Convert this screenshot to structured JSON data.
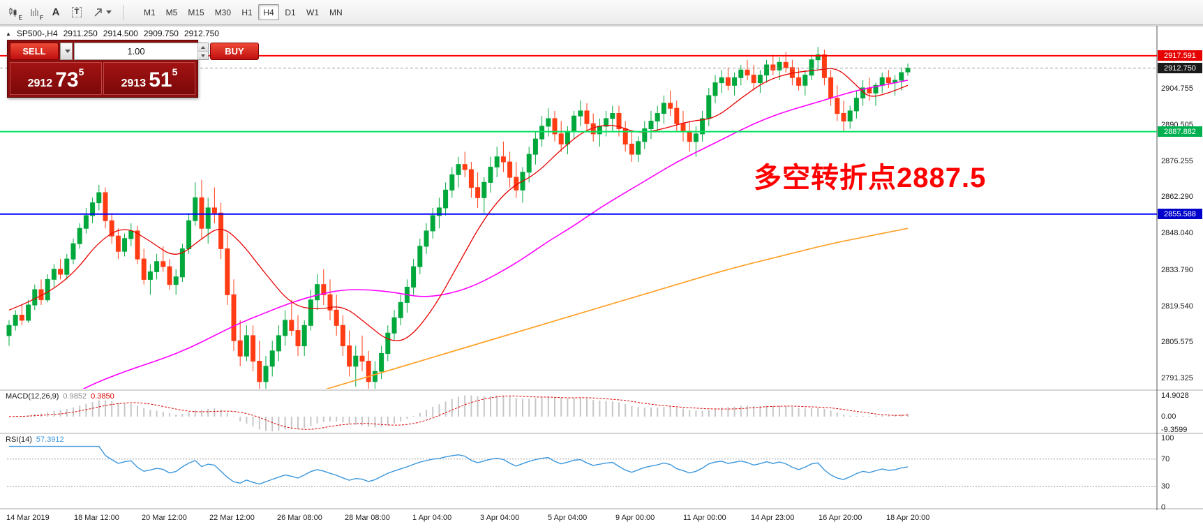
{
  "toolbar": {
    "icons": [
      {
        "name": "chart-expert-icon",
        "glyph": "E"
      },
      {
        "name": "indicator-list-icon",
        "glyph": "F"
      },
      {
        "name": "text-label-icon",
        "glyph": "A"
      },
      {
        "name": "text-box-icon",
        "glyph": "T"
      },
      {
        "name": "arrow-tools-icon",
        "glyph": ""
      }
    ],
    "timeframes": [
      "M1",
      "M5",
      "M15",
      "M30",
      "H1",
      "H4",
      "D1",
      "W1",
      "MN"
    ],
    "active_timeframe": "H4"
  },
  "chart": {
    "header": {
      "collapse_icon": "▲",
      "symbol_period": "SP500-,H4",
      "open": "2911.250",
      "high": "2914.500",
      "low": "2909.750",
      "close": "2912.750"
    },
    "trade_panel": {
      "sell_label": "SELL",
      "buy_label": "BUY",
      "volume": "1.00",
      "bid_base": "2912",
      "bid_big": "73",
      "bid_sup": "5",
      "ask_base": "2913",
      "ask_big": "51",
      "ask_sup": "5"
    },
    "annotation": {
      "text": "多空转折点2887.5",
      "color": "#ff0000"
    },
    "levels": [
      {
        "label": "2917.591",
        "price": 2917.591,
        "line_color": "#ff0000",
        "tag_color": "#e60000",
        "dashed": false
      },
      {
        "label": "2912.750",
        "price": 2912.75,
        "line_color": "#9a9a9a",
        "tag_color": "#1a1a1a",
        "dashed": true
      },
      {
        "label": "2887.882",
        "price": 2887.882,
        "line_color": "#00e25c",
        "tag_color": "#00b050",
        "dashed": false
      },
      {
        "label": "2855.588",
        "price": 2855.588,
        "line_color": "#0000ff",
        "tag_color": "#0000cc",
        "dashed": false
      }
    ],
    "colors": {
      "bull": "#00a83c",
      "bear": "#ff3c14",
      "ma_fast": "#e80000",
      "ma_mid": "#ff00ff",
      "ma_slow": "#ffa028",
      "rsi": "#3a96dd",
      "macd_hist": "#c6c6c6",
      "macd_signal": "#dd0000"
    }
  },
  "macd": {
    "name": "MACD(12,26,9)",
    "value_main": "0.9852",
    "value_signal": "0.3850",
    "scale": [
      {
        "label": "14.9028",
        "value": 14.9028
      },
      {
        "label": "0.00",
        "value": 0
      },
      {
        "label": "-9.3599",
        "value": -9.3599
      }
    ]
  },
  "rsi": {
    "name": "RSI(14)",
    "value": "57.3912",
    "scale": [
      {
        "label": "100",
        "value": 100
      },
      {
        "label": "70",
        "value": 70
      },
      {
        "label": "30",
        "value": 30
      },
      {
        "label": "0",
        "value": 0
      }
    ]
  },
  "chart_data": {
    "type": "candlestick",
    "symbol": "SP500-",
    "timeframe": "H4",
    "ohlc_current": {
      "open": 2911.25,
      "high": 2914.5,
      "low": 2909.75,
      "close": 2912.75
    },
    "price_range": [
      2787.2,
      2926.3
    ],
    "y_ticks": [
      "2904.755",
      "2890.505",
      "2876.255",
      "2862.290",
      "2848.040",
      "2833.790",
      "2819.540",
      "2805.575",
      "2791.325"
    ],
    "x_ticks": [
      "14 Mar 2019",
      "18 Mar 12:00",
      "20 Mar 12:00",
      "22 Mar 12:00",
      "26 Mar 08:00",
      "28 Mar 08:00",
      "1 Apr 04:00",
      "3 Apr 04:00",
      "5 Apr 04:00",
      "9 Apr 00:00",
      "11 Apr 00:00",
      "14 Apr 23:00",
      "16 Apr 20:00",
      "18 Apr 20:00"
    ],
    "candles": [
      [
        2808,
        2814,
        2804,
        2812
      ],
      [
        2812,
        2818,
        2810,
        2816
      ],
      [
        2816,
        2820,
        2812,
        2814
      ],
      [
        2814,
        2822,
        2813,
        2820
      ],
      [
        2820,
        2828,
        2818,
        2826
      ],
      [
        2826,
        2830,
        2820,
        2822
      ],
      [
        2822,
        2832,
        2821,
        2830
      ],
      [
        2830,
        2836,
        2827,
        2834
      ],
      [
        2834,
        2838,
        2830,
        2832
      ],
      [
        2832,
        2840,
        2830,
        2838
      ],
      [
        2838,
        2846,
        2836,
        2844
      ],
      [
        2844,
        2852,
        2842,
        2850
      ],
      [
        2850,
        2858,
        2848,
        2855
      ],
      [
        2855,
        2862,
        2852,
        2860
      ],
      [
        2860,
        2867,
        2857,
        2864
      ],
      [
        2864,
        2866,
        2850,
        2853
      ],
      [
        2853,
        2856,
        2844,
        2847
      ],
      [
        2847,
        2850,
        2838,
        2841
      ],
      [
        2841,
        2848,
        2839,
        2846
      ],
      [
        2846,
        2852,
        2843,
        2849
      ],
      [
        2849,
        2851,
        2836,
        2838
      ],
      [
        2838,
        2842,
        2828,
        2830
      ],
      [
        2830,
        2836,
        2824,
        2833
      ],
      [
        2833,
        2840,
        2830,
        2837
      ],
      [
        2837,
        2843,
        2833,
        2835
      ],
      [
        2835,
        2838,
        2826,
        2828
      ],
      [
        2828,
        2834,
        2824,
        2831
      ],
      [
        2831,
        2844,
        2829,
        2842
      ],
      [
        2842,
        2856,
        2840,
        2853
      ],
      [
        2853,
        2868,
        2851,
        2862
      ],
      [
        2862,
        2869,
        2846,
        2850
      ],
      [
        2850,
        2862,
        2844,
        2858
      ],
      [
        2858,
        2866,
        2852,
        2856
      ],
      [
        2856,
        2860,
        2838,
        2842
      ],
      [
        2842,
        2848,
        2820,
        2824
      ],
      [
        2824,
        2830,
        2802,
        2806
      ],
      [
        2806,
        2814,
        2796,
        2800
      ],
      [
        2800,
        2812,
        2798,
        2808
      ],
      [
        2808,
        2812,
        2794,
        2798
      ],
      [
        2798,
        2806,
        2786,
        2790
      ],
      [
        2790,
        2800,
        2784,
        2796
      ],
      [
        2796,
        2806,
        2792,
        2802
      ],
      [
        2802,
        2812,
        2798,
        2808
      ],
      [
        2808,
        2818,
        2804,
        2814
      ],
      [
        2814,
        2822,
        2808,
        2810
      ],
      [
        2810,
        2816,
        2800,
        2804
      ],
      [
        2804,
        2814,
        2800,
        2812
      ],
      [
        2812,
        2826,
        2810,
        2822
      ],
      [
        2822,
        2832,
        2818,
        2828
      ],
      [
        2828,
        2834,
        2820,
        2824
      ],
      [
        2824,
        2830,
        2814,
        2818
      ],
      [
        2818,
        2824,
        2808,
        2812
      ],
      [
        2812,
        2816,
        2800,
        2804
      ],
      [
        2804,
        2810,
        2792,
        2796
      ],
      [
        2796,
        2804,
        2788,
        2800
      ],
      [
        2800,
        2808,
        2794,
        2798
      ],
      [
        2798,
        2802,
        2786,
        2790
      ],
      [
        2790,
        2798,
        2785,
        2794
      ],
      [
        2794,
        2804,
        2791,
        2801
      ],
      [
        2801,
        2812,
        2798,
        2809
      ],
      [
        2809,
        2818,
        2806,
        2815
      ],
      [
        2815,
        2824,
        2812,
        2821
      ],
      [
        2821,
        2830,
        2817,
        2827
      ],
      [
        2827,
        2838,
        2824,
        2835
      ],
      [
        2835,
        2846,
        2832,
        2843
      ],
      [
        2843,
        2852,
        2840,
        2849
      ],
      [
        2849,
        2858,
        2846,
        2855
      ],
      [
        2855,
        2862,
        2850,
        2858
      ],
      [
        2858,
        2868,
        2855,
        2865
      ],
      [
        2865,
        2874,
        2862,
        2871
      ],
      [
        2871,
        2878,
        2866,
        2875
      ],
      [
        2875,
        2880,
        2870,
        2873
      ],
      [
        2873,
        2876,
        2862,
        2866
      ],
      [
        2866,
        2872,
        2858,
        2862
      ],
      [
        2862,
        2870,
        2856,
        2868
      ],
      [
        2868,
        2878,
        2864,
        2874
      ],
      [
        2874,
        2882,
        2870,
        2878
      ],
      [
        2878,
        2884,
        2872,
        2876
      ],
      [
        2876,
        2880,
        2866,
        2870
      ],
      [
        2870,
        2876,
        2862,
        2865
      ],
      [
        2865,
        2874,
        2860,
        2872
      ],
      [
        2872,
        2882,
        2868,
        2879
      ],
      [
        2879,
        2888,
        2875,
        2885
      ],
      [
        2885,
        2894,
        2882,
        2890
      ],
      [
        2890,
        2897,
        2886,
        2893
      ],
      [
        2893,
        2896,
        2884,
        2887
      ],
      [
        2887,
        2892,
        2880,
        2883
      ],
      [
        2883,
        2890,
        2879,
        2888
      ],
      [
        2888,
        2896,
        2885,
        2894
      ],
      [
        2894,
        2900,
        2890,
        2896
      ],
      [
        2896,
        2899,
        2888,
        2891
      ],
      [
        2891,
        2895,
        2884,
        2887
      ],
      [
        2887,
        2893,
        2882,
        2890
      ],
      [
        2890,
        2896,
        2886,
        2893
      ],
      [
        2893,
        2898,
        2888,
        2895
      ],
      [
        2895,
        2898,
        2886,
        2889
      ],
      [
        2889,
        2892,
        2880,
        2883
      ],
      [
        2883,
        2888,
        2876,
        2879
      ],
      [
        2879,
        2886,
        2876,
        2884
      ],
      [
        2884,
        2892,
        2881,
        2889
      ],
      [
        2889,
        2896,
        2885,
        2892
      ],
      [
        2892,
        2898,
        2888,
        2895
      ],
      [
        2895,
        2902,
        2891,
        2899
      ],
      [
        2899,
        2904,
        2894,
        2897
      ],
      [
        2897,
        2900,
        2888,
        2891
      ],
      [
        2891,
        2896,
        2884,
        2888
      ],
      [
        2888,
        2892,
        2880,
        2884
      ],
      [
        2884,
        2890,
        2878,
        2887
      ],
      [
        2887,
        2896,
        2884,
        2893
      ],
      [
        2893,
        2905,
        2890,
        2902
      ],
      [
        2902,
        2910,
        2899,
        2907
      ],
      [
        2907,
        2912,
        2903,
        2909
      ],
      [
        2909,
        2913,
        2904,
        2906
      ],
      [
        2906,
        2911,
        2902,
        2909
      ],
      [
        2909,
        2914,
        2906,
        2912
      ],
      [
        2912,
        2916,
        2908,
        2910
      ],
      [
        2910,
        2914,
        2904,
        2907
      ],
      [
        2907,
        2912,
        2903,
        2910
      ],
      [
        2910,
        2916,
        2907,
        2914
      ],
      [
        2914,
        2918,
        2910,
        2912
      ],
      [
        2912,
        2917,
        2908,
        2915
      ],
      [
        2915,
        2919,
        2911,
        2913
      ],
      [
        2913,
        2916,
        2906,
        2909
      ],
      [
        2909,
        2913,
        2904,
        2906
      ],
      [
        2906,
        2912,
        2902,
        2910
      ],
      [
        2910,
        2918,
        2908,
        2916
      ],
      [
        2916,
        2921,
        2912,
        2918
      ],
      [
        2918,
        2920,
        2906,
        2909
      ],
      [
        2909,
        2912,
        2898,
        2901
      ],
      [
        2901,
        2906,
        2892,
        2895
      ],
      [
        2895,
        2900,
        2888,
        2892
      ],
      [
        2892,
        2898,
        2889,
        2896
      ],
      [
        2896,
        2904,
        2893,
        2901
      ],
      [
        2901,
        2908,
        2898,
        2905
      ],
      [
        2905,
        2909,
        2900,
        2903
      ],
      [
        2903,
        2907,
        2898,
        2906
      ],
      [
        2906,
        2911,
        2903,
        2909
      ],
      [
        2909,
        2912,
        2905,
        2907
      ],
      [
        2907,
        2910,
        2902,
        2908
      ],
      [
        2908,
        2913,
        2904,
        2911
      ],
      [
        2911.25,
        2914.5,
        2909.75,
        2912.75
      ]
    ],
    "ma_fast": [
      [
        0,
        2818
      ],
      [
        5,
        2823
      ],
      [
        10,
        2832
      ],
      [
        14,
        2845
      ],
      [
        18,
        2851
      ],
      [
        22,
        2845
      ],
      [
        26,
        2838
      ],
      [
        30,
        2846
      ],
      [
        33,
        2851
      ],
      [
        36,
        2845
      ],
      [
        40,
        2832
      ],
      [
        44,
        2820
      ],
      [
        48,
        2818
      ],
      [
        52,
        2820
      ],
      [
        56,
        2812
      ],
      [
        59,
        2806
      ],
      [
        62,
        2806
      ],
      [
        66,
        2818
      ],
      [
        70,
        2836
      ],
      [
        74,
        2854
      ],
      [
        78,
        2866
      ],
      [
        82,
        2871
      ],
      [
        86,
        2881
      ],
      [
        90,
        2889
      ],
      [
        94,
        2891
      ],
      [
        98,
        2887
      ],
      [
        102,
        2889
      ],
      [
        106,
        2892
      ],
      [
        110,
        2893
      ],
      [
        114,
        2901
      ],
      [
        118,
        2908
      ],
      [
        122,
        2911
      ],
      [
        126,
        2912
      ],
      [
        129,
        2913
      ],
      [
        132,
        2906
      ],
      [
        134,
        2901
      ],
      [
        137,
        2903
      ],
      [
        140,
        2906
      ]
    ],
    "ma_mid": [
      [
        0,
        2770
      ],
      [
        6,
        2779
      ],
      [
        12,
        2788
      ],
      [
        18,
        2794
      ],
      [
        24,
        2799
      ],
      [
        28,
        2803
      ],
      [
        32,
        2808
      ],
      [
        36,
        2813
      ],
      [
        40,
        2817
      ],
      [
        44,
        2821
      ],
      [
        48,
        2824
      ],
      [
        52,
        2826
      ],
      [
        56,
        2826
      ],
      [
        60,
        2825
      ],
      [
        64,
        2823
      ],
      [
        68,
        2824
      ],
      [
        72,
        2827
      ],
      [
        76,
        2832
      ],
      [
        80,
        2838
      ],
      [
        84,
        2845
      ],
      [
        88,
        2851
      ],
      [
        92,
        2858
      ],
      [
        96,
        2864
      ],
      [
        100,
        2870
      ],
      [
        104,
        2876
      ],
      [
        108,
        2881
      ],
      [
        112,
        2886
      ],
      [
        116,
        2891
      ],
      [
        120,
        2895
      ],
      [
        124,
        2898
      ],
      [
        128,
        2901
      ],
      [
        132,
        2904
      ],
      [
        136,
        2906
      ],
      [
        140,
        2908
      ]
    ],
    "ma_slow": [
      [
        40,
        2780
      ],
      [
        48,
        2786
      ],
      [
        56,
        2792
      ],
      [
        64,
        2798
      ],
      [
        72,
        2804
      ],
      [
        80,
        2810
      ],
      [
        88,
        2816
      ],
      [
        96,
        2822
      ],
      [
        104,
        2828
      ],
      [
        112,
        2834
      ],
      [
        120,
        2839
      ],
      [
        128,
        2844
      ],
      [
        134,
        2847
      ],
      [
        140,
        2850
      ]
    ]
  }
}
